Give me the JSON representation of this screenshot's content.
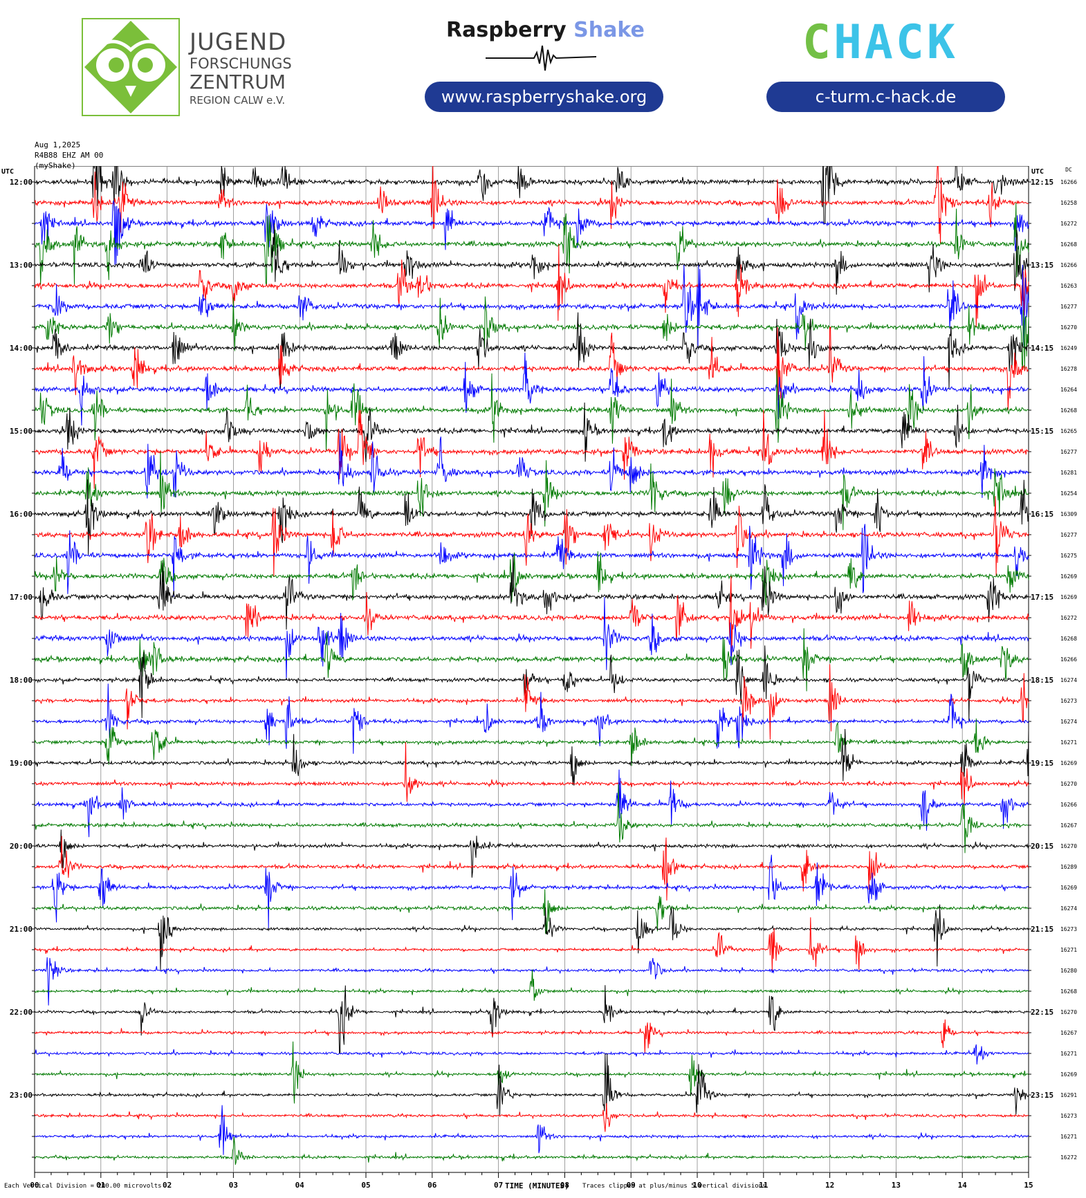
{
  "header": {
    "jfz_lines": [
      "JUGEND",
      "FORSCHUNGS",
      "ZENTRUM",
      "REGION CALW e.V."
    ],
    "rs_brand_part1": "Raspberry",
    "rs_brand_part2": "Shake",
    "rs_url": "www.raspberryshake.org",
    "chack_logo_text": "CHACK",
    "chack_url": "c-turm.c-hack.de"
  },
  "meta": {
    "date": "Aug 1,2025",
    "station": "R4B88 EHZ AM 00",
    "device": "(myShake)"
  },
  "footer": {
    "scale_note": "Each Vertical Division =  200.00 microvolts",
    "time_label": "TIME (MINUTES)",
    "clip_note": "Traces clipped at plus/minus 5 vertical divisions"
  },
  "colors": {
    "brand_green": "#7bbf3a",
    "brand_blue": "#1f3a93",
    "rs_accent": "#7b97e6",
    "chack_green": "#73c046",
    "chack_cyan": "#3cc3e8",
    "trace_cycle": [
      "#000000",
      "#ff0000",
      "#0000ff",
      "#007a00"
    ]
  },
  "chart_data": {
    "type": "line",
    "title": "",
    "left_axis_label": "UTC",
    "right_axis_label": "UTC",
    "dc_label": "DC",
    "xlabel": "TIME (MINUTES)",
    "xlim": [
      0,
      15
    ],
    "x_ticks": [
      "00",
      "01",
      "02",
      "03",
      "04",
      "05",
      "06",
      "07",
      "08",
      "09",
      "10",
      "11",
      "12",
      "13",
      "14",
      "15"
    ],
    "minutes_per_row": 15,
    "rows": 48,
    "left_hour_labels": [
      "12:00",
      "13:00",
      "14:00",
      "15:00",
      "16:00",
      "17:00",
      "18:00",
      "19:00",
      "20:00",
      "21:00",
      "22:00",
      "23:00"
    ],
    "right_hour_labels": [
      "12:15",
      "13:15",
      "14:15",
      "15:15",
      "16:15",
      "17:15",
      "18:15",
      "19:15",
      "20:15",
      "21:15",
      "22:15",
      "23:15"
    ],
    "dc_offsets": [
      16266,
      16258,
      16272,
      16268,
      16266,
      16263,
      16277,
      16270,
      16249,
      16278,
      16264,
      16268,
      16265,
      16277,
      16281,
      16254,
      16309,
      16277,
      16275,
      16269,
      16269,
      16272,
      16268,
      16266,
      16274,
      16273,
      16274,
      16271,
      16269,
      16270,
      16266,
      16267,
      16270,
      16289,
      16269,
      16274,
      16273,
      16271,
      16280,
      16268,
      16270,
      16267,
      16271,
      16269,
      16291,
      16273,
      16271,
      16272
    ],
    "events": [
      [
        [
          0.9,
          70
        ],
        [
          1.2,
          55
        ],
        [
          2.8,
          25
        ],
        [
          3.3,
          30
        ],
        [
          3.7,
          40
        ],
        [
          6.7,
          45
        ],
        [
          7.3,
          35
        ],
        [
          8.8,
          50
        ],
        [
          11.9,
          140
        ],
        [
          13.9,
          35
        ],
        [
          14.5,
          30
        ]
      ],
      [
        [
          0.9,
          40
        ],
        [
          1.3,
          35
        ],
        [
          2.8,
          20
        ],
        [
          5.2,
          45
        ],
        [
          6.0,
          50
        ],
        [
          8.7,
          30
        ],
        [
          11.2,
          45
        ],
        [
          13.6,
          120
        ],
        [
          14.4,
          30
        ]
      ],
      [
        [
          0.1,
          40
        ],
        [
          1.2,
          90
        ],
        [
          3.5,
          60
        ],
        [
          4.2,
          30
        ],
        [
          6.2,
          35
        ],
        [
          7.7,
          40
        ],
        [
          8.2,
          35
        ],
        [
          14.8,
          40
        ]
      ],
      [
        [
          0.1,
          55
        ],
        [
          0.6,
          35
        ],
        [
          1.1,
          40
        ],
        [
          2.8,
          30
        ],
        [
          3.5,
          130
        ],
        [
          5.1,
          40
        ],
        [
          8.0,
          55
        ],
        [
          9.7,
          45
        ],
        [
          13.9,
          35
        ],
        [
          14.8,
          50
        ]
      ],
      [
        [
          1.6,
          40
        ],
        [
          3.6,
          60
        ],
        [
          4.6,
          30
        ],
        [
          5.6,
          40
        ],
        [
          7.5,
          30
        ],
        [
          10.6,
          45
        ],
        [
          12.1,
          35
        ],
        [
          13.5,
          50
        ],
        [
          14.8,
          70
        ]
      ],
      [
        [
          2.5,
          40
        ],
        [
          3.0,
          30
        ],
        [
          5.5,
          45
        ],
        [
          5.8,
          40
        ],
        [
          7.9,
          35
        ],
        [
          9.5,
          30
        ],
        [
          10.6,
          45
        ],
        [
          14.2,
          60
        ],
        [
          14.9,
          55
        ]
      ],
      [
        [
          0.3,
          35
        ],
        [
          2.5,
          40
        ],
        [
          4.0,
          40
        ],
        [
          9.8,
          55
        ],
        [
          10.0,
          60
        ],
        [
          11.5,
          35
        ],
        [
          13.8,
          45
        ],
        [
          14.9,
          65
        ]
      ],
      [
        [
          0.2,
          30
        ],
        [
          1.1,
          30
        ],
        [
          3.0,
          30
        ],
        [
          6.1,
          35
        ],
        [
          6.8,
          40
        ],
        [
          9.5,
          30
        ],
        [
          11.6,
          45
        ],
        [
          14.1,
          35
        ],
        [
          14.9,
          70
        ]
      ],
      [
        [
          0.3,
          35
        ],
        [
          2.1,
          40
        ],
        [
          3.7,
          55
        ],
        [
          5.4,
          30
        ],
        [
          6.7,
          40
        ],
        [
          8.2,
          50
        ],
        [
          9.8,
          40
        ],
        [
          11.2,
          50
        ],
        [
          11.7,
          40
        ],
        [
          13.8,
          45
        ],
        [
          14.7,
          45
        ]
      ],
      [
        [
          0.6,
          40
        ],
        [
          1.5,
          45
        ],
        [
          3.7,
          40
        ],
        [
          8.7,
          40
        ],
        [
          10.2,
          35
        ],
        [
          11.2,
          80
        ],
        [
          12.0,
          50
        ],
        [
          14.7,
          60
        ]
      ],
      [
        [
          0.7,
          35
        ],
        [
          2.6,
          35
        ],
        [
          6.5,
          35
        ],
        [
          7.4,
          40
        ],
        [
          8.7,
          55
        ],
        [
          9.4,
          40
        ],
        [
          11.2,
          50
        ],
        [
          12.4,
          40
        ],
        [
          13.4,
          40
        ]
      ],
      [
        [
          0.1,
          35
        ],
        [
          0.9,
          40
        ],
        [
          3.2,
          30
        ],
        [
          4.4,
          40
        ],
        [
          4.8,
          50
        ],
        [
          6.9,
          40
        ],
        [
          8.7,
          45
        ],
        [
          9.6,
          30
        ],
        [
          11.2,
          60
        ],
        [
          12.3,
          35
        ],
        [
          13.2,
          40
        ],
        [
          14.1,
          35
        ]
      ],
      [
        [
          0.5,
          40
        ],
        [
          2.9,
          35
        ],
        [
          4.1,
          30
        ],
        [
          5.0,
          45
        ],
        [
          8.3,
          30
        ],
        [
          9.5,
          30
        ],
        [
          13.1,
          40
        ],
        [
          13.9,
          35
        ]
      ],
      [
        [
          0.9,
          40
        ],
        [
          2.6,
          30
        ],
        [
          3.4,
          35
        ],
        [
          4.6,
          45
        ],
        [
          4.9,
          70
        ],
        [
          5.8,
          40
        ],
        [
          8.9,
          40
        ],
        [
          10.2,
          35
        ],
        [
          11.0,
          40
        ],
        [
          11.9,
          60
        ],
        [
          13.4,
          30
        ]
      ],
      [
        [
          0.4,
          35
        ],
        [
          1.7,
          60
        ],
        [
          2.1,
          40
        ],
        [
          4.6,
          55
        ],
        [
          5.1,
          50
        ],
        [
          6.1,
          45
        ],
        [
          7.3,
          35
        ],
        [
          8.7,
          40
        ],
        [
          9.0,
          40
        ],
        [
          14.3,
          45
        ]
      ],
      [
        [
          0.8,
          35
        ],
        [
          1.9,
          40
        ],
        [
          5.8,
          55
        ],
        [
          7.7,
          40
        ],
        [
          9.3,
          50
        ],
        [
          10.4,
          35
        ],
        [
          12.2,
          35
        ],
        [
          14.5,
          55
        ]
      ],
      [
        [
          0.8,
          60
        ],
        [
          2.7,
          40
        ],
        [
          3.7,
          50
        ],
        [
          4.9,
          35
        ],
        [
          5.6,
          40
        ],
        [
          7.5,
          45
        ],
        [
          10.2,
          40
        ],
        [
          11.0,
          40
        ],
        [
          12.1,
          35
        ],
        [
          12.7,
          45
        ],
        [
          14.9,
          45
        ]
      ],
      [
        [
          1.7,
          45
        ],
        [
          2.2,
          35
        ],
        [
          3.6,
          55
        ],
        [
          4.5,
          45
        ],
        [
          7.4,
          40
        ],
        [
          8.0,
          50
        ],
        [
          8.6,
          40
        ],
        [
          9.3,
          35
        ],
        [
          10.6,
          45
        ],
        [
          14.5,
          70
        ]
      ],
      [
        [
          0.5,
          45
        ],
        [
          2.1,
          35
        ],
        [
          4.1,
          40
        ],
        [
          6.1,
          35
        ],
        [
          7.9,
          40
        ],
        [
          10.8,
          55
        ],
        [
          11.3,
          45
        ],
        [
          12.5,
          55
        ],
        [
          14.8,
          35
        ]
      ],
      [
        [
          0.3,
          30
        ],
        [
          1.9,
          35
        ],
        [
          4.8,
          35
        ],
        [
          7.2,
          40
        ],
        [
          8.5,
          35
        ],
        [
          11.0,
          50
        ],
        [
          12.3,
          35
        ],
        [
          14.7,
          40
        ]
      ],
      [
        [
          0.1,
          45
        ],
        [
          1.9,
          55
        ],
        [
          3.8,
          55
        ],
        [
          7.2,
          50
        ],
        [
          7.7,
          35
        ],
        [
          10.3,
          30
        ],
        [
          11.0,
          50
        ],
        [
          12.1,
          40
        ],
        [
          14.4,
          55
        ]
      ],
      [
        [
          3.2,
          45
        ],
        [
          5.0,
          25
        ],
        [
          9.0,
          40
        ],
        [
          9.7,
          40
        ],
        [
          10.5,
          50
        ],
        [
          10.8,
          45
        ],
        [
          13.2,
          45
        ]
      ],
      [
        [
          1.1,
          40
        ],
        [
          3.8,
          50
        ],
        [
          4.3,
          45
        ],
        [
          4.6,
          40
        ],
        [
          8.6,
          50
        ],
        [
          9.3,
          30
        ],
        [
          10.5,
          40
        ]
      ],
      [
        [
          1.6,
          50
        ],
        [
          1.8,
          30
        ],
        [
          4.4,
          35
        ],
        [
          10.4,
          40
        ],
        [
          11.6,
          45
        ],
        [
          14.0,
          40
        ],
        [
          14.6,
          45
        ]
      ],
      [
        [
          1.6,
          55
        ],
        [
          7.4,
          35
        ],
        [
          8.0,
          40
        ],
        [
          8.7,
          35
        ],
        [
          10.6,
          40
        ],
        [
          11.0,
          45
        ],
        [
          14.1,
          40
        ]
      ],
      [
        [
          1.4,
          35
        ],
        [
          7.4,
          30
        ],
        [
          10.7,
          40
        ],
        [
          11.1,
          45
        ],
        [
          12.0,
          40
        ],
        [
          14.9,
          45
        ]
      ],
      [
        [
          1.1,
          35
        ],
        [
          3.5,
          35
        ],
        [
          3.8,
          40
        ],
        [
          4.8,
          45
        ],
        [
          6.8,
          25
        ],
        [
          7.6,
          35
        ],
        [
          8.5,
          30
        ],
        [
          10.3,
          45
        ],
        [
          10.6,
          40
        ],
        [
          13.8,
          50
        ]
      ],
      [
        [
          1.1,
          55
        ],
        [
          1.8,
          45
        ],
        [
          9.0,
          40
        ],
        [
          12.1,
          35
        ],
        [
          14.2,
          30
        ]
      ],
      [
        [
          3.9,
          40
        ],
        [
          8.1,
          35
        ],
        [
          12.2,
          45
        ],
        [
          14.0,
          40
        ],
        [
          15.0,
          40
        ]
      ],
      [
        [
          5.6,
          45
        ],
        [
          14.0,
          30
        ]
      ],
      [
        [
          0.8,
          35
        ],
        [
          1.3,
          30
        ],
        [
          8.8,
          50
        ],
        [
          9.6,
          40
        ],
        [
          12.0,
          35
        ],
        [
          13.4,
          45
        ],
        [
          14.6,
          45
        ]
      ],
      [
        [
          8.8,
          40
        ],
        [
          14.0,
          45
        ]
      ],
      [
        [
          0.4,
          30
        ],
        [
          6.6,
          40
        ]
      ],
      [
        [
          0.4,
          50
        ],
        [
          9.5,
          55
        ],
        [
          11.6,
          40
        ],
        [
          12.6,
          50
        ]
      ],
      [
        [
          0.3,
          50
        ],
        [
          1.0,
          45
        ],
        [
          3.5,
          45
        ],
        [
          7.2,
          30
        ],
        [
          11.1,
          50
        ],
        [
          11.8,
          55
        ],
        [
          12.6,
          45
        ]
      ],
      [
        [
          7.7,
          35
        ],
        [
          9.4,
          30
        ]
      ],
      [
        [
          1.9,
          55
        ],
        [
          7.7,
          35
        ],
        [
          9.1,
          40
        ],
        [
          9.6,
          40
        ],
        [
          13.6,
          45
        ]
      ],
      [
        [
          10.3,
          35
        ],
        [
          11.1,
          40
        ],
        [
          11.7,
          50
        ],
        [
          12.4,
          35
        ]
      ],
      [
        [
          0.2,
          55
        ],
        [
          9.3,
          30
        ]
      ],
      [
        [
          7.5,
          30
        ]
      ],
      [
        [
          1.6,
          30
        ],
        [
          4.6,
          75
        ],
        [
          6.9,
          40
        ],
        [
          8.6,
          30
        ],
        [
          11.1,
          45
        ]
      ],
      [
        [
          9.2,
          30
        ],
        [
          13.7,
          25
        ]
      ],
      [
        [
          14.2,
          20
        ]
      ],
      [
        [
          3.9,
          35
        ],
        [
          7.0,
          25
        ],
        [
          9.9,
          40
        ]
      ],
      [
        [
          7.0,
          40
        ],
        [
          8.6,
          75
        ],
        [
          10.0,
          70
        ],
        [
          14.8,
          30
        ]
      ],
      [
        [
          8.6,
          25
        ]
      ],
      [
        [
          2.8,
          40
        ],
        [
          7.6,
          25
        ]
      ],
      [
        [
          3.0,
          20
        ]
      ]
    ]
  }
}
